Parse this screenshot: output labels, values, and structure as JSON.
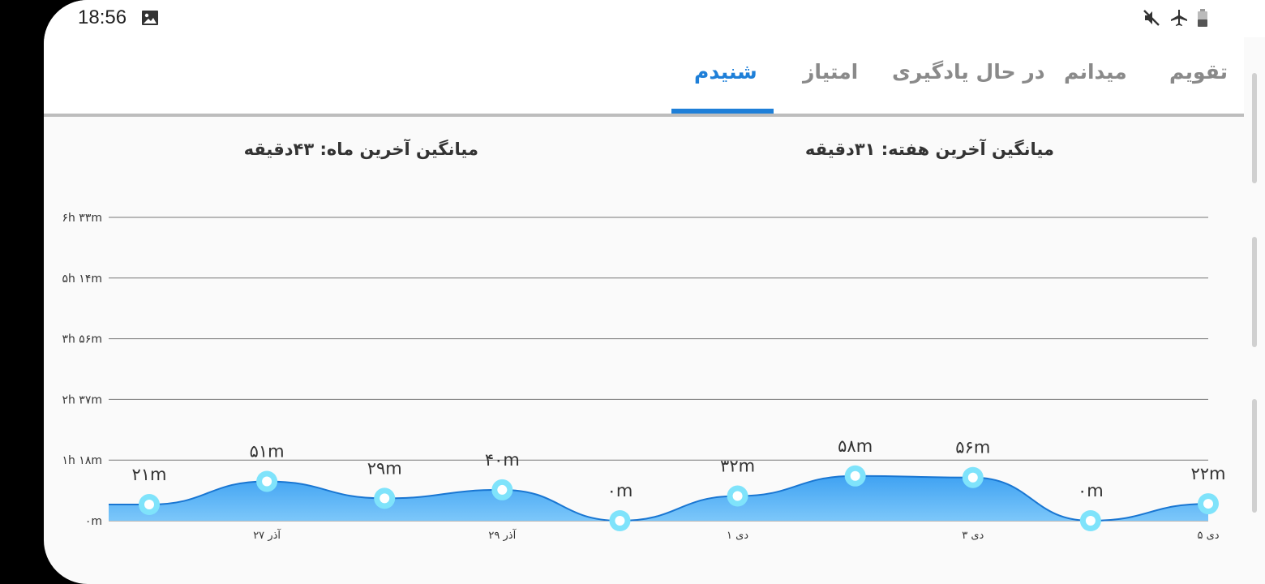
{
  "status_bar": {
    "time": "18:56",
    "icons": [
      "gallery-icon",
      "mute-icon",
      "airplane-mode-icon",
      "battery-icon"
    ]
  },
  "tabs": [
    {
      "label": "تقویم",
      "active": false
    },
    {
      "label": "میدانم",
      "active": false
    },
    {
      "label": "در حال یادگیری",
      "active": false
    },
    {
      "label": "امتیاز",
      "active": false
    },
    {
      "label": "شنیدم",
      "active": true
    }
  ],
  "colors": {
    "accent": "#1e7fd8",
    "area_fill": "#5fb4f5",
    "marker": "#7fe3fb"
  },
  "averages": {
    "week": "میانگین آخرین هفته: ۳۱دقیقه",
    "month": "میانگین آخرین ماه: ۴۳دقیقه"
  },
  "chart_data": {
    "type": "area",
    "y_tick_labels": [
      "۰m",
      "۱h ۱۸m",
      "۲h ۳۷m",
      "۳h ۵۶m",
      "۵h ۱۴m",
      "۶h ۳۳m"
    ],
    "ylim": [
      0,
      393
    ],
    "x_tick_labels": [
      {
        "index": 1,
        "label": "۲۷ آذر"
      },
      {
        "index": 3,
        "label": "۲۹ آذر"
      },
      {
        "index": 5,
        "label": "۱ دی"
      },
      {
        "index": 7,
        "label": "۳ دی"
      },
      {
        "index": 9,
        "label": "۵ دی"
      }
    ],
    "values": [
      21,
      51,
      29,
      40,
      0,
      32,
      58,
      56,
      0,
      22
    ],
    "value_labels": [
      "۲۱m",
      "۵۱m",
      "۲۹m",
      "۴۰m",
      "۰m",
      "۳۲m",
      "۵۸m",
      "۵۶m",
      "۰m",
      "۲۲m"
    ],
    "grid": true
  }
}
